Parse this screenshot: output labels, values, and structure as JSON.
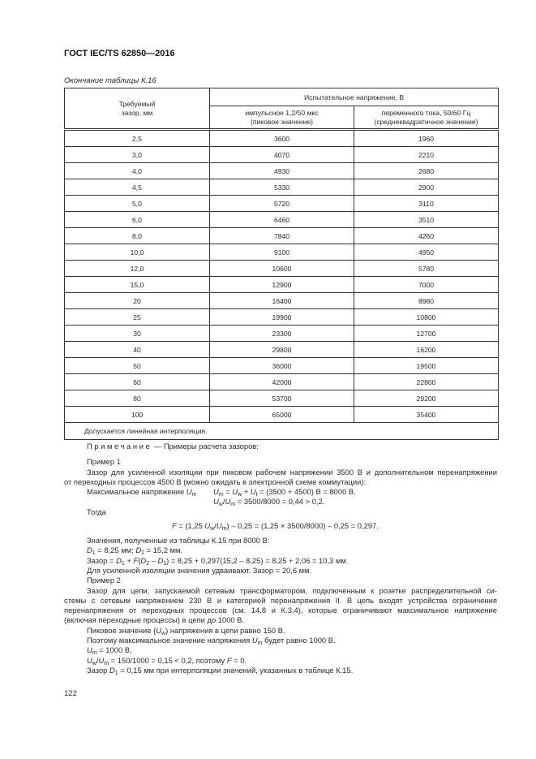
{
  "header": {
    "title": "ГОСТ IEC/TS 62850—2016"
  },
  "caption": "Окончание таблицы К.16",
  "table": {
    "col1_header": "Требуемый зазор, мм",
    "group_header": "Испытательное напряжение, В",
    "col2_header": [
      "импульсное 1,2/50 мкс",
      "(пиковое значение)"
    ],
    "col3_header": [
      "переменного тока, 50/60 Гц",
      "(среднеквадратичное значение)"
    ],
    "rows": [
      [
        "2,5",
        "3600",
        "1960"
      ],
      [
        "3,0",
        "4070",
        "2210"
      ],
      [
        "4,0",
        "4930",
        "2680"
      ],
      [
        "4,5",
        "5330",
        "2900"
      ],
      [
        "5,0",
        "5720",
        "3110"
      ],
      [
        "6,0",
        "6460",
        "3510"
      ],
      [
        "8,0",
        "7840",
        "4260"
      ],
      [
        "10,0",
        "9100",
        "4950"
      ],
      [
        "12,0",
        "10600",
        "5780"
      ],
      [
        "15,0",
        "12900",
        "7000"
      ],
      [
        "20",
        "16400",
        "8980"
      ],
      [
        "25",
        "19900",
        "10800"
      ],
      [
        "30",
        "23300",
        "12700"
      ],
      [
        "40",
        "29800",
        "16200"
      ],
      [
        "50",
        "36000",
        "19500"
      ],
      [
        "60",
        "42000",
        "22800"
      ],
      [
        "80",
        "53700",
        "29200"
      ],
      [
        "100",
        "65000",
        "35400"
      ]
    ],
    "footnote": "Допускается линейная интерполяция."
  },
  "body": {
    "lines": [
      {
        "top": 544,
        "left": 107,
        "segs": [
          {
            "t": "Примечание",
            "s": "sp"
          },
          {
            "t": " — Примеры расчета зазоров:"
          }
        ]
      },
      {
        "top": 563,
        "left": 107,
        "segs": [
          {
            "t": "Пример 1"
          }
        ]
      },
      {
        "top": 576,
        "left": 107,
        "j": true,
        "segs": [
          {
            "t": "Зазор для усиленной изоляции при пиковом рабочем напряжении 3500 В и дополнительном перенапряжении"
          }
        ]
      },
      {
        "top": 588,
        "left": 79,
        "segs": [
          {
            "t": "от переходных процессов 4500 В (можно ожидать в электронной схеме коммутации):"
          }
        ]
      },
      {
        "top": 600,
        "left": 107,
        "segs": [
          {
            "t": "Максимальное напряжение "
          },
          {
            "t": "U",
            "s": "i"
          },
          {
            "t": "m",
            "s": "sub"
          }
        ]
      },
      {
        "top": 600,
        "left": 263,
        "segs": [
          {
            "t": "U",
            "s": "i"
          },
          {
            "t": "m",
            "s": "sub"
          },
          {
            "t": " = "
          },
          {
            "t": "U",
            "s": "i"
          },
          {
            "t": "w",
            "s": "sub"
          },
          {
            "t": " + "
          },
          {
            "t": "U",
            "s": "i"
          },
          {
            "t": "t",
            "s": "sub"
          },
          {
            "t": " = (3500 + 4500) В = 8000 В."
          }
        ]
      },
      {
        "top": 612,
        "left": 263,
        "segs": [
          {
            "t": "U",
            "s": "i"
          },
          {
            "t": "w",
            "s": "sub"
          },
          {
            "t": "/"
          },
          {
            "t": "U",
            "s": "i"
          },
          {
            "t": "m",
            "s": "sub"
          },
          {
            "t": " = 3500/8000 = 0,44 > 0,2."
          }
        ]
      },
      {
        "top": 625,
        "left": 107,
        "segs": [
          {
            "t": "Тогда"
          }
        ]
      },
      {
        "top": 642,
        "left": 212,
        "segs": [
          {
            "t": "F",
            "s": "i"
          },
          {
            "t": " = (1,25 "
          },
          {
            "t": "U",
            "s": "i"
          },
          {
            "t": "w",
            "s": "sub"
          },
          {
            "t": "/"
          },
          {
            "t": "U",
            "s": "i"
          },
          {
            "t": "m",
            "s": "sub"
          },
          {
            "t": ") – 0,25 = (1,25 × 3500/8000) – 0,25 = 0,297."
          }
        ]
      },
      {
        "top": 660,
        "left": 107,
        "segs": [
          {
            "t": "Значения, полученные из таблицы К.15 при 8000 В:"
          }
        ]
      },
      {
        "top": 672,
        "left": 107,
        "segs": [
          {
            "t": "D",
            "s": "i"
          },
          {
            "t": "1",
            "s": "sub"
          },
          {
            "t": " = 8,25 мм; "
          },
          {
            "t": "D",
            "s": "i"
          },
          {
            "t": "2",
            "s": "sub"
          },
          {
            "t": " = 15,2 мм."
          }
        ]
      },
      {
        "top": 685,
        "left": 107,
        "segs": [
          {
            "t": "Зазор = "
          },
          {
            "t": "D",
            "s": "i"
          },
          {
            "t": "1",
            "s": "sub"
          },
          {
            "t": " + "
          },
          {
            "t": "F",
            "s": "i"
          },
          {
            "t": "("
          },
          {
            "t": "D",
            "s": "i"
          },
          {
            "t": "2",
            "s": "sub"
          },
          {
            "t": " – "
          },
          {
            "t": "D",
            "s": "i"
          },
          {
            "t": "1",
            "s": "sub"
          },
          {
            "t": ") = 8,25 + 0,297(15,2 – 8,25) = 8,25 + 2,06 = 10,3 мм."
          }
        ]
      },
      {
        "top": 697,
        "left": 107,
        "segs": [
          {
            "t": "Для усиленной изоляции значения удваивают. Зазор = 20,6 мм."
          }
        ]
      },
      {
        "top": 709,
        "left": 107,
        "segs": [
          {
            "t": "Пример 2"
          }
        ]
      },
      {
        "top": 722,
        "left": 107,
        "j": true,
        "segs": [
          {
            "t": "Зазор для цепи, запускаемой сетевым трансформатором, подключенным к розетке распределительной си-"
          }
        ]
      },
      {
        "top": 734,
        "left": 79,
        "j": true,
        "segs": [
          {
            "t": "стемы с сетевым напряжением 230 В и категорией перенапряжения II. В цепь входят устройства ограничения"
          }
        ]
      },
      {
        "top": 746,
        "left": 79,
        "j": true,
        "segs": [
          {
            "t": "перенапряжения от переходных процессов (см. 14.8 и К.3.4), которые ограничивают максимальное напряжение"
          }
        ]
      },
      {
        "top": 758,
        "left": 79,
        "segs": [
          {
            "t": "(включая переходные процессы) в цепи до 1000 В."
          }
        ]
      },
      {
        "top": 771,
        "left": 107,
        "segs": [
          {
            "t": "Пиковое значение ("
          },
          {
            "t": "U",
            "s": "i"
          },
          {
            "t": "w",
            "s": "sub"
          },
          {
            "t": ") напряжения в цепи равно 150 В."
          }
        ]
      },
      {
        "top": 783,
        "left": 107,
        "segs": [
          {
            "t": "Поэтому максимальное значение напряжения "
          },
          {
            "t": "U",
            "s": "i"
          },
          {
            "t": "m",
            "s": "sub"
          },
          {
            "t": " будет равно 1000 В."
          }
        ]
      },
      {
        "top": 795,
        "left": 107,
        "segs": [
          {
            "t": "U",
            "s": "i"
          },
          {
            "t": "m",
            "s": "sub"
          },
          {
            "t": " = 1000 В,"
          }
        ]
      },
      {
        "top": 808,
        "left": 107,
        "segs": [
          {
            "t": "U",
            "s": "i"
          },
          {
            "t": "w",
            "s": "sub"
          },
          {
            "t": "/"
          },
          {
            "t": "U",
            "s": "i"
          },
          {
            "t": "m",
            "s": "sub"
          },
          {
            "t": " = 150/1000 = 0,15 < 0,2, поэтому "
          },
          {
            "t": "F",
            "s": "i"
          },
          {
            "t": " = 0."
          }
        ]
      },
      {
        "top": 820,
        "left": 107,
        "segs": [
          {
            "t": "Зазор "
          },
          {
            "t": "D",
            "s": "i"
          },
          {
            "t": "1",
            "s": "sub"
          },
          {
            "t": " = 0,15 мм при интерполяции значений, указанных в таблице К.15."
          }
        ]
      }
    ]
  },
  "footer": {
    "page_number": "122"
  }
}
